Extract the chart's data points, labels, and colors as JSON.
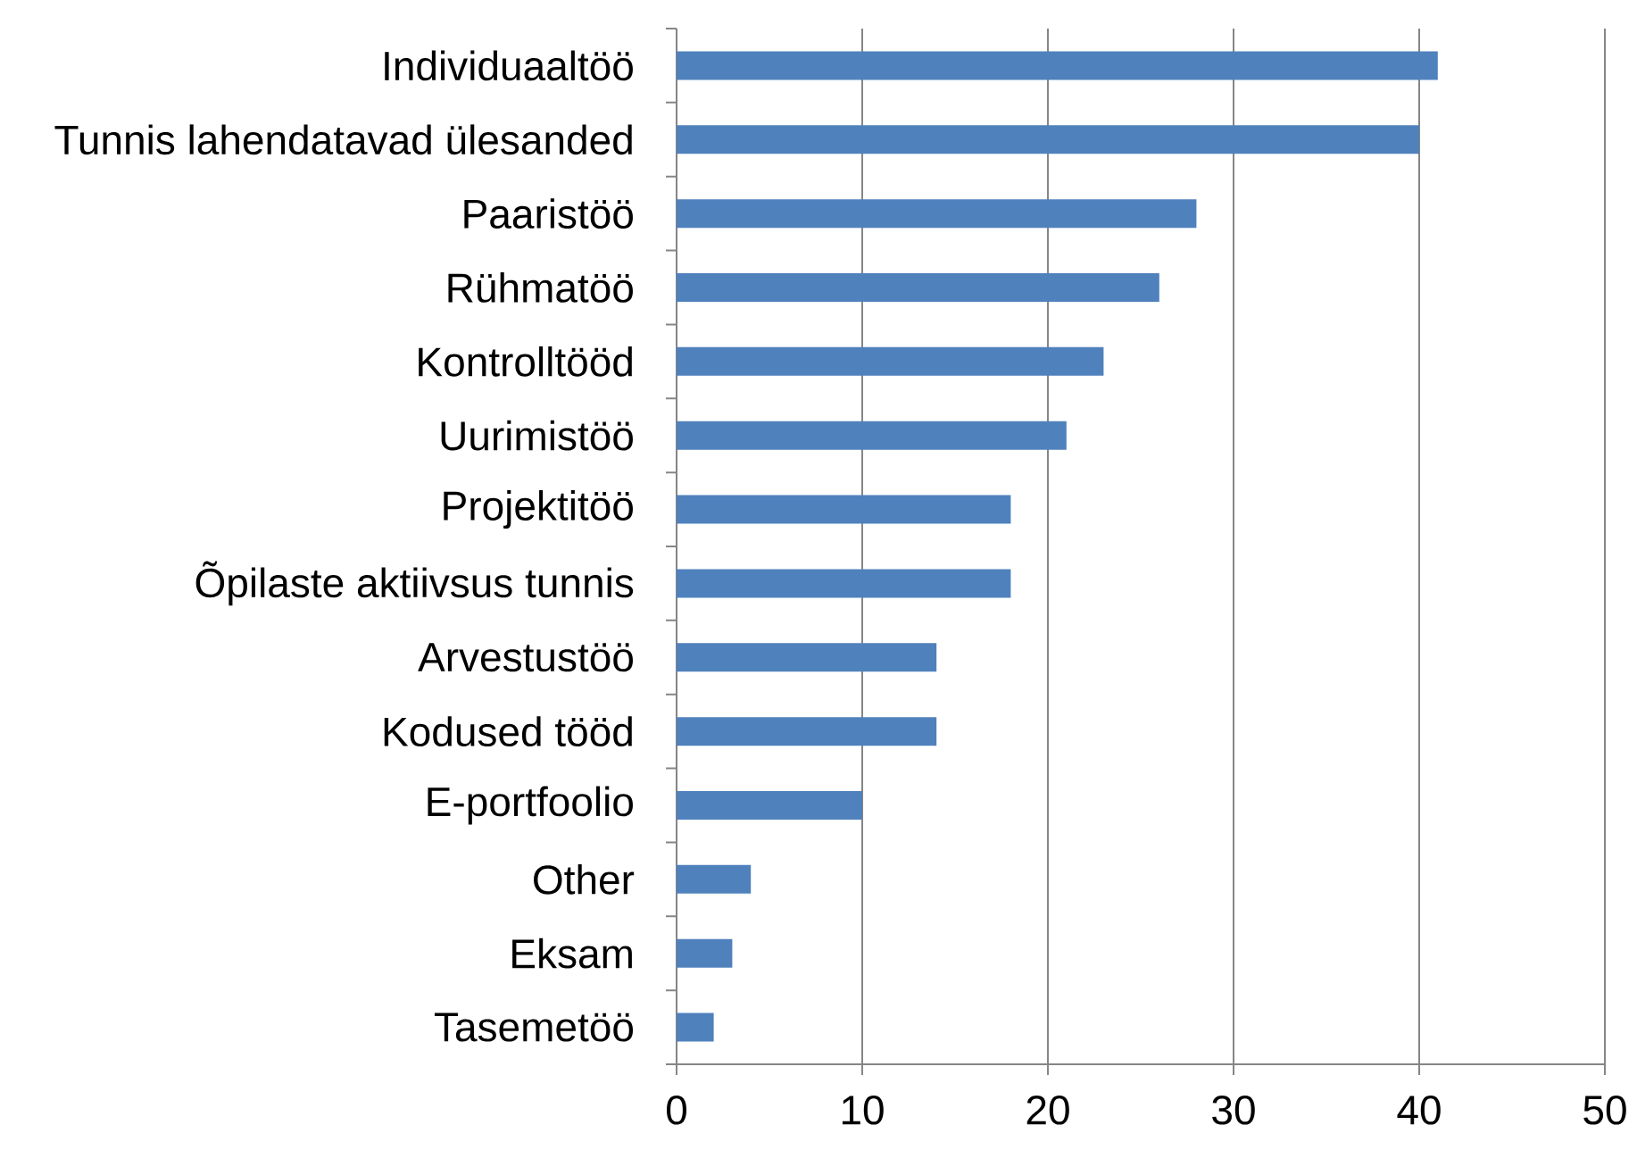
{
  "chart_data": {
    "type": "bar",
    "orientation": "horizontal",
    "categories": [
      "Individuaaltöö",
      "Tunnis lahendatavad ülesanded",
      "Paaristöö",
      "Rühmatöö",
      "Kontrolltööd",
      "Uurimistöö",
      "Projektitöö",
      "Õpilaste aktiivsus tunnis",
      "Arvestustöö",
      "Kodused tööd",
      "E-portfoolio",
      "Other",
      "Eksam",
      "Tasemetöö"
    ],
    "values": [
      41,
      40,
      28,
      26,
      23,
      21,
      18,
      18,
      14,
      14,
      10,
      4,
      3,
      2
    ],
    "color": "#4f81bd",
    "xlim": [
      0,
      50
    ],
    "xticks": [
      0,
      10,
      20,
      30,
      40,
      50
    ],
    "grid": "x"
  }
}
